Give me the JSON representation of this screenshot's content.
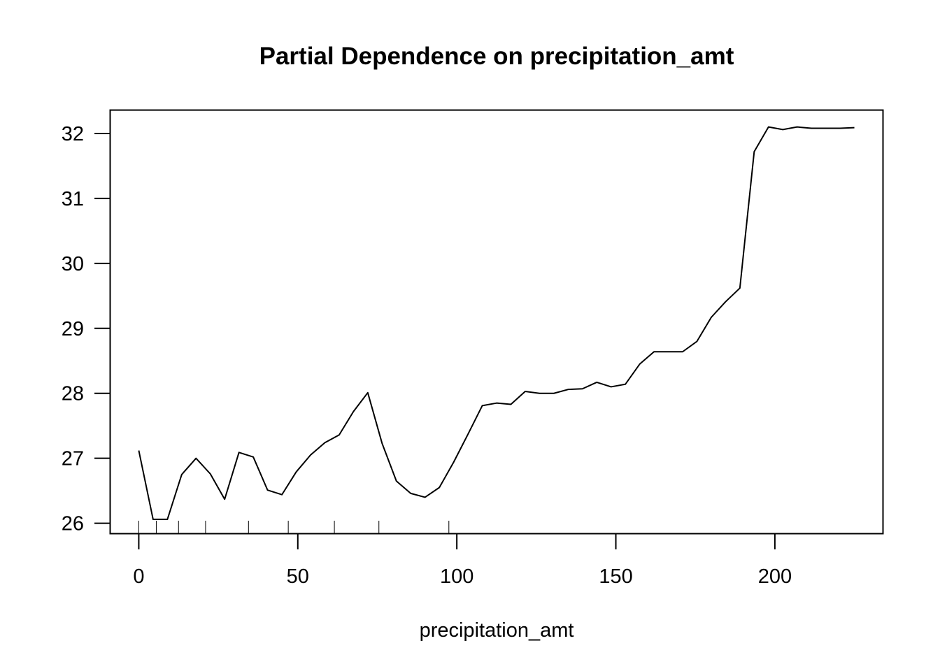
{
  "chart_data": {
    "type": "line",
    "title": "Partial Dependence on precipitation_amt",
    "xlabel": "precipitation_amt",
    "ylabel": "",
    "xlim": [
      -9,
      234
    ],
    "ylim": [
      25.84,
      32.36
    ],
    "x_ticks": [
      0,
      50,
      100,
      150,
      200
    ],
    "y_ticks": [
      26,
      27,
      28,
      29,
      30,
      31,
      32
    ],
    "grid": false,
    "series": [
      {
        "color": "#000000",
        "x": [
          0,
          4.5,
          9,
          13.5,
          18,
          22.5,
          27,
          31.5,
          36,
          40.5,
          45,
          49.5,
          54,
          58.5,
          63,
          67.5,
          72,
          76.5,
          81,
          85.5,
          90,
          94.5,
          99,
          103.5,
          108,
          112.5,
          117,
          121.5,
          126,
          130.5,
          135,
          139.5,
          144,
          148.5,
          153,
          157.5,
          162,
          166.5,
          171,
          175.5,
          180,
          184.5,
          189,
          193.5,
          198,
          202.5,
          207,
          211.5,
          216,
          220.5,
          225
        ],
        "y": [
          27.12,
          26.06,
          26.06,
          26.75,
          27.0,
          26.76,
          26.37,
          27.09,
          27.02,
          26.51,
          26.44,
          26.79,
          27.05,
          27.24,
          27.36,
          27.72,
          28.01,
          27.23,
          26.65,
          26.46,
          26.4,
          26.55,
          26.94,
          27.37,
          27.81,
          27.85,
          27.83,
          28.03,
          28.0,
          28.0,
          28.06,
          28.07,
          28.17,
          28.1,
          28.14,
          28.45,
          28.64,
          28.64,
          28.64,
          28.8,
          29.17,
          29.41,
          29.62,
          31.72,
          32.1,
          32.06,
          32.1,
          32.08,
          32.08,
          32.08,
          32.09
        ]
      }
    ],
    "rug": [
      0,
      5.5,
      12.5,
      21,
      34.5,
      47,
      61.5,
      75.5,
      97.5
    ]
  }
}
